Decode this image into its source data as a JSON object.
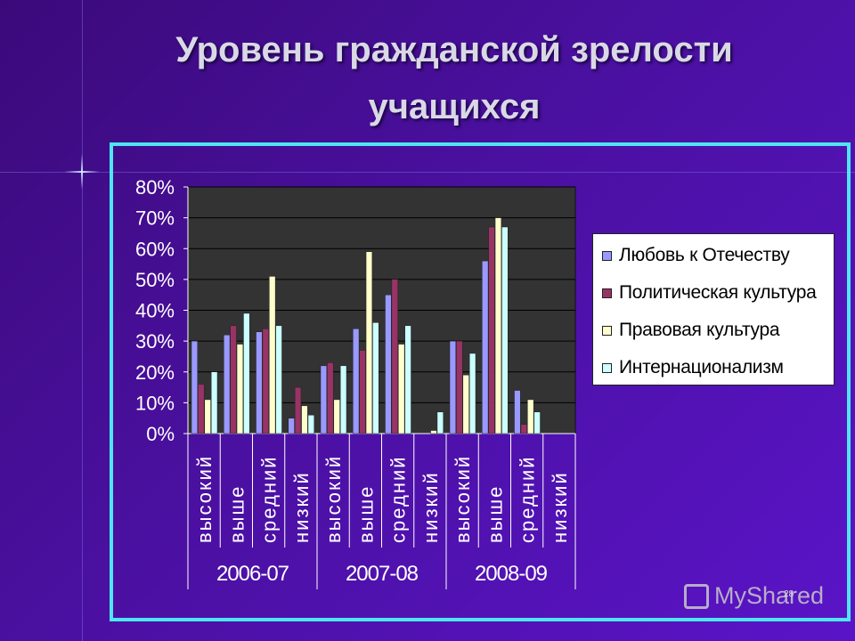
{
  "slide": {
    "title_line1": "Уровень гражданской зрелости",
    "title_line2": "учащихся",
    "watermark": "MyShared",
    "page_number": "28"
  },
  "colors": {
    "background": "#4a10a0",
    "frame": "#4ee6f2",
    "plot_area": "#333333"
  },
  "chart_data": {
    "type": "bar",
    "ylim": [
      0,
      0.8
    ],
    "yticks": [
      "0%",
      "10%",
      "20%",
      "30%",
      "40%",
      "50%",
      "60%",
      "70%",
      "80%"
    ],
    "grid": true,
    "legend_position": "right",
    "groups": [
      {
        "label": "2006-07",
        "categories": [
          "высокий",
          "выше",
          "средний",
          "низкий"
        ]
      },
      {
        "label": "2007-08",
        "categories": [
          "высокий",
          "выше",
          "средний",
          "низкий"
        ]
      },
      {
        "label": "2008-09",
        "categories": [
          "высокий",
          "выше",
          "средний",
          "низкий"
        ]
      }
    ],
    "series": [
      {
        "name": "Любовь к Отечеству",
        "color": "#9999ff",
        "values": [
          0.3,
          0.32,
          0.33,
          0.05,
          0.22,
          0.34,
          0.45,
          0.0,
          0.3,
          0.56,
          0.14,
          0.0
        ]
      },
      {
        "name": "Политическая культура",
        "color": "#993366",
        "values": [
          0.16,
          0.35,
          0.34,
          0.15,
          0.23,
          0.27,
          0.5,
          0.0,
          0.3,
          0.67,
          0.03,
          0.0
        ]
      },
      {
        "name": "Правовая культура",
        "color": "#ffffcc",
        "values": [
          0.11,
          0.29,
          0.51,
          0.09,
          0.11,
          0.59,
          0.29,
          0.01,
          0.19,
          0.7,
          0.11,
          0.0
        ]
      },
      {
        "name": "Интернационализм",
        "color": "#ccffff",
        "values": [
          0.2,
          0.39,
          0.35,
          0.06,
          0.22,
          0.36,
          0.35,
          0.07,
          0.26,
          0.67,
          0.07,
          0.0
        ]
      }
    ]
  }
}
